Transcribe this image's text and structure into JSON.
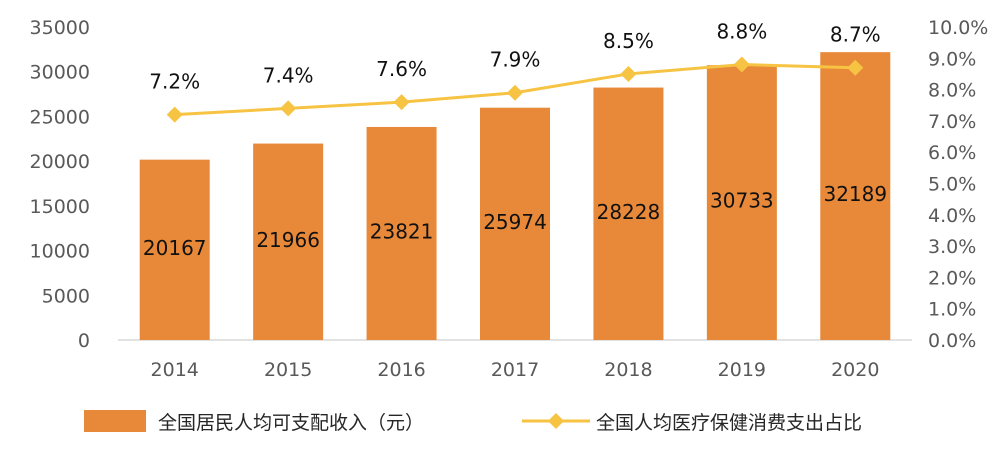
{
  "chart_data": {
    "type": "bar+line",
    "categories": [
      "2014",
      "2015",
      "2016",
      "2017",
      "2018",
      "2019",
      "2020"
    ],
    "series": [
      {
        "name": "全国居民人均可支配收入（元）",
        "type": "bar",
        "axis": "left",
        "values": [
          20167,
          21966,
          23821,
          25974,
          28228,
          30733,
          32189
        ],
        "color": "#E8893A"
      },
      {
        "name": "全国人均医疗保健消费支出占比",
        "type": "line",
        "axis": "right",
        "values": [
          7.2,
          7.4,
          7.6,
          7.9,
          8.5,
          8.8,
          8.7
        ],
        "labels": [
          "7.2%",
          "7.4%",
          "7.6%",
          "7.9%",
          "8.5%",
          "8.8%",
          "8.7%"
        ],
        "color": "#F6C343"
      }
    ],
    "y_left": {
      "min": 0,
      "max": 35000,
      "ticks": [
        "0",
        "5000",
        "10000",
        "15000",
        "20000",
        "25000",
        "30000",
        "35000"
      ]
    },
    "y_right": {
      "min": 0,
      "max": 10,
      "ticks": [
        "0.0%",
        "1.0%",
        "2.0%",
        "3.0%",
        "4.0%",
        "5.0%",
        "6.0%",
        "7.0%",
        "8.0%",
        "9.0%",
        "10.0%"
      ]
    },
    "grid": false,
    "legend_position": "bottom"
  }
}
